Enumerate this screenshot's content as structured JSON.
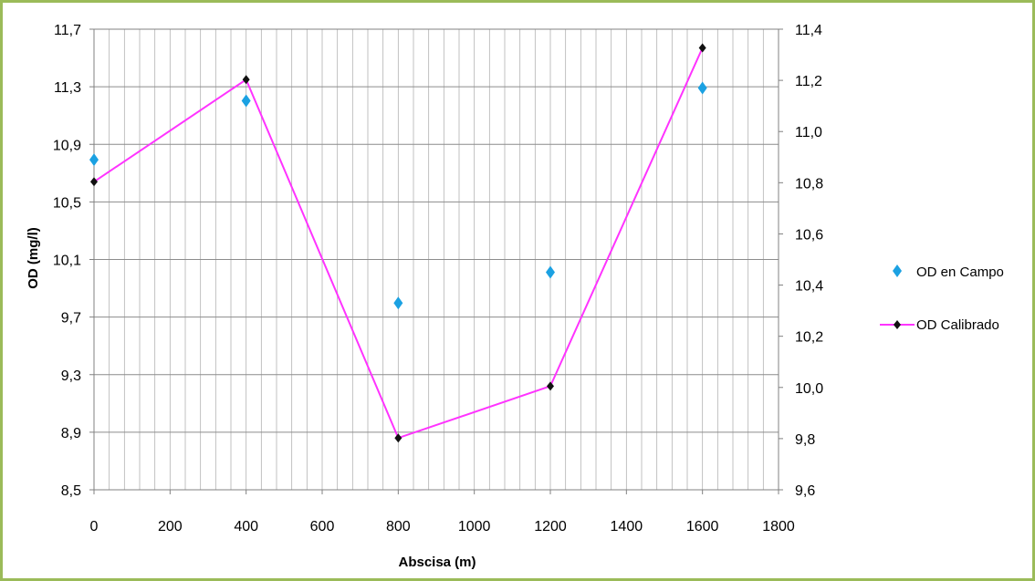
{
  "chart_data": {
    "type": "line",
    "xlabel": "Abscisa (m)",
    "ylabel": "OD (mg/l)",
    "xlim": [
      0,
      1800
    ],
    "x_ticks": [
      "0",
      "200",
      "400",
      "600",
      "800",
      "1000",
      "1200",
      "1400",
      "1600",
      "1800"
    ],
    "ylim_left": [
      8.5,
      11.7
    ],
    "y_ticks_left": [
      "8,5",
      "8,9",
      "9,3",
      "9,7",
      "10,1",
      "10,5",
      "10,9",
      "11,3",
      "11,7"
    ],
    "ylim_right": [
      9.6,
      11.4
    ],
    "y_ticks_right": [
      "9,6",
      "9,8",
      "10,0",
      "10,2",
      "10,4",
      "10,6",
      "10,8",
      "11,0",
      "11,2",
      "11,4"
    ],
    "grid": true,
    "legend_position": "right",
    "series": [
      {
        "name": "OD en Campo",
        "kind": "scatter",
        "axis": "right",
        "color": "#1ba1e2",
        "marker": "diamond",
        "x": [
          0,
          400,
          800,
          1200,
          1600
        ],
        "y": [
          10.89,
          11.12,
          10.33,
          10.45,
          11.17
        ]
      },
      {
        "name": "OD Calibrado",
        "kind": "line",
        "axis": "left",
        "color": "#ff33ff",
        "marker_color": "#111111",
        "marker": "diamond",
        "x": [
          0,
          400,
          800,
          1200,
          1600
        ],
        "y": [
          10.64,
          11.35,
          8.86,
          9.22,
          11.57
        ]
      }
    ]
  }
}
